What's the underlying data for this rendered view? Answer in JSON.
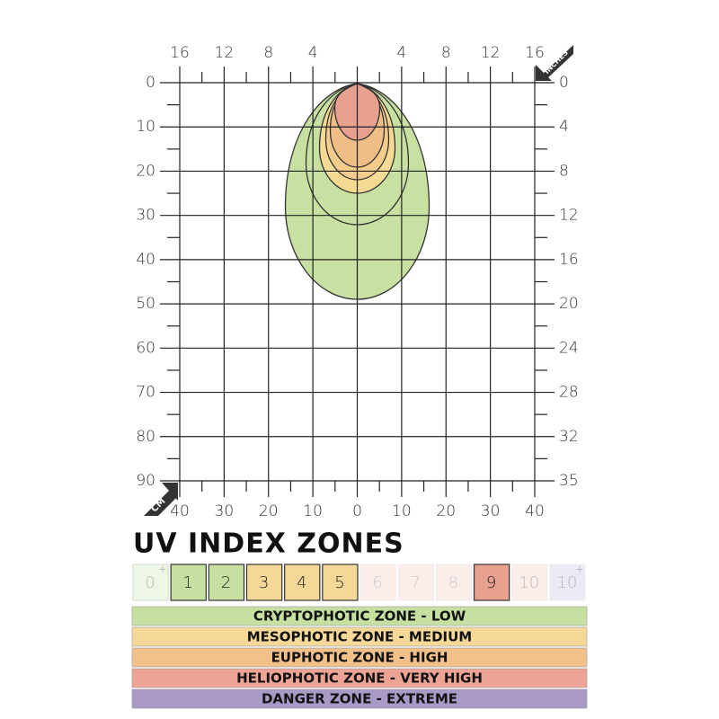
{
  "axes": {
    "top_inches": [
      16,
      12,
      8,
      4,
      4,
      8,
      12,
      16
    ],
    "left_cm": [
      0,
      10,
      20,
      30,
      40,
      50,
      60,
      70,
      80,
      90
    ],
    "right_inches": [
      0,
      4,
      8,
      12,
      16,
      20,
      24,
      28,
      32,
      35
    ],
    "bottom_cm": [
      40,
      30,
      20,
      10,
      0,
      10,
      20,
      30,
      40
    ],
    "inches_badge": "INCHES",
    "cm_badge": "CM"
  },
  "title": "UV INDEX ZONES",
  "index_boxes": [
    {
      "label": "0",
      "sup": "+"
    },
    {
      "label": "1"
    },
    {
      "label": "2"
    },
    {
      "label": "3"
    },
    {
      "label": "4"
    },
    {
      "label": "5"
    },
    {
      "label": "6"
    },
    {
      "label": "7"
    },
    {
      "label": "8"
    },
    {
      "label": "9"
    },
    {
      "label": "10"
    },
    {
      "label": "10",
      "sup": "+"
    }
  ],
  "zones": [
    "CRYPTOPHOTIC ZONE - LOW",
    "MESOPHOTIC ZONE - MEDIUM",
    "EUPHOTIC ZONE - HIGH",
    "HELIOPHOTIC ZONE - VERY HIGH",
    "DANGER ZONE - EXTREME"
  ]
}
